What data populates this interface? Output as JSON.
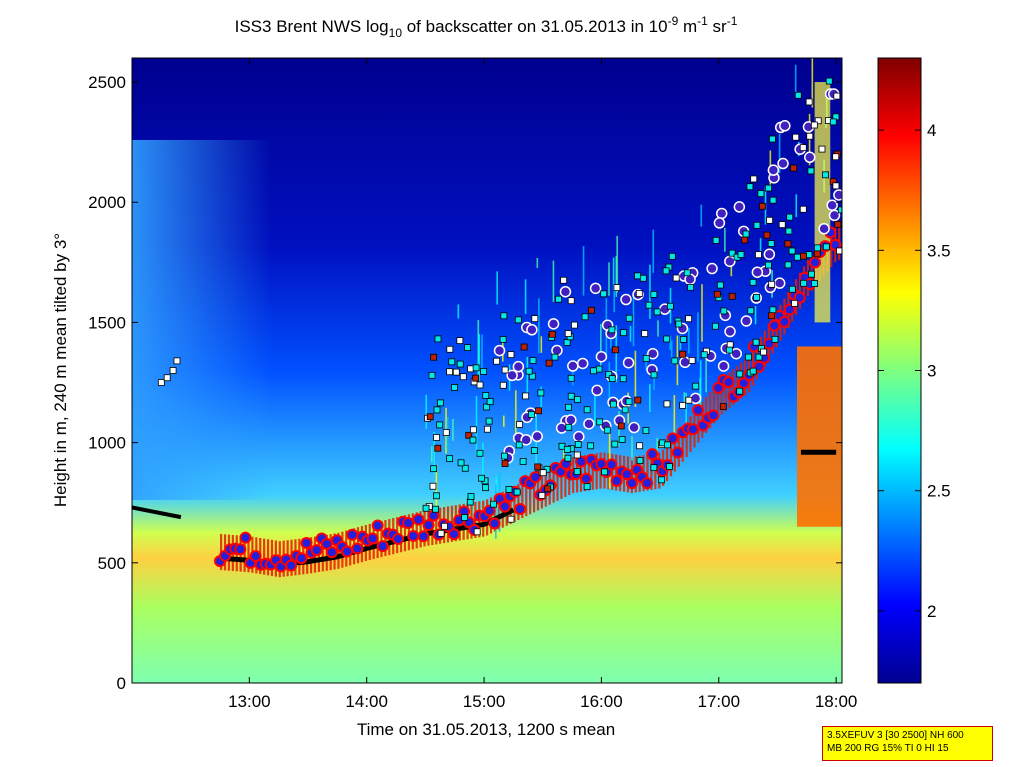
{
  "chart_data": {
    "type": "heatmap",
    "title": {
      "t1": "ISS3 Brent NWS log",
      "t1_sub": "10",
      "t2": " of backscatter on 31.05.2013 in 10",
      "t2_sup": "-9",
      "t3": " m",
      "t3_sup": "-1",
      "t4": " sr",
      "t4_sup": "-1"
    },
    "xlabel": "Time on 31.05.2013, 1200 s mean",
    "ylabel": "Height in m, 240 m mean tilted by 3°",
    "xlim": [
      "12:00",
      "18:03"
    ],
    "ylim": [
      0,
      2600
    ],
    "x_ticks": [
      "13:00",
      "14:00",
      "15:00",
      "16:00",
      "17:00",
      "18:00"
    ],
    "y_ticks": [
      "0",
      "500",
      "1000",
      "1500",
      "2000",
      "2500"
    ],
    "colorbar": {
      "range": [
        1.7,
        4.3
      ],
      "ticks": [
        "2",
        "2.5",
        "3",
        "3.5",
        "4"
      ],
      "colormap": [
        "#00008f",
        "#0000ff",
        "#007fff",
        "#00ffff",
        "#7fff7f",
        "#ffff00",
        "#ff7f00",
        "#ff0000",
        "#7f0000"
      ]
    },
    "boundary_layer_top": {
      "x": [
        "12:45",
        "13:00",
        "13:15",
        "13:30",
        "13:45",
        "14:00",
        "14:15",
        "14:30",
        "14:45",
        "15:00",
        "15:15",
        "15:30",
        "15:45",
        "16:00",
        "16:15",
        "16:30",
        "16:45",
        "17:00",
        "17:15",
        "17:30",
        "17:45",
        "18:00"
      ],
      "height": [
        560,
        550,
        530,
        545,
        565,
        600,
        630,
        660,
        680,
        700,
        760,
        820,
        880,
        900,
        880,
        900,
        1050,
        1200,
        1300,
        1500,
        1700,
        1850
      ]
    },
    "background_color": "#00008f",
    "accent_colors": {
      "bl_marker": "#2020e0",
      "bl_marker_ring": "#ff0000",
      "cloud_marker_cyan": "#00e8e8",
      "cloud_marker_white": "#ffffff",
      "base_line": "#000000"
    }
  },
  "info_box": {
    "line1": "3.5XEFUV 3 [30 2500] NH 600",
    "line2": "MB 200 RG 15% TI 0 HI 15"
  }
}
